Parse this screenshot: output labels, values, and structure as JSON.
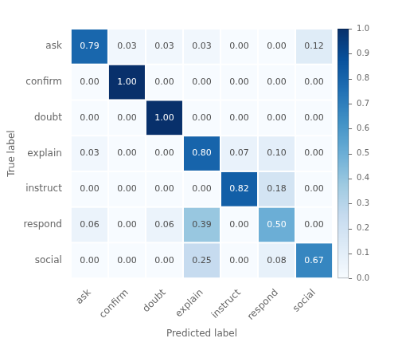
{
  "chart_data": {
    "type": "heatmap",
    "x": [
      "ask",
      "confirm",
      "doubt",
      "explain",
      "instruct",
      "respond",
      "social"
    ],
    "y": [
      "ask",
      "confirm",
      "doubt",
      "explain",
      "instruct",
      "respond",
      "social"
    ],
    "values": [
      [
        0.79,
        0.03,
        0.03,
        0.03,
        0.0,
        0.0,
        0.12
      ],
      [
        0.0,
        1.0,
        0.0,
        0.0,
        0.0,
        0.0,
        0.0
      ],
      [
        0.0,
        0.0,
        1.0,
        0.0,
        0.0,
        0.0,
        0.0
      ],
      [
        0.03,
        0.0,
        0.0,
        0.8,
        0.07,
        0.1,
        0.0
      ],
      [
        0.0,
        0.0,
        0.0,
        0.0,
        0.82,
        0.18,
        0.0
      ],
      [
        0.06,
        0.0,
        0.06,
        0.39,
        0.0,
        0.5,
        0.0
      ],
      [
        0.0,
        0.0,
        0.0,
        0.25,
        0.0,
        0.08,
        0.67
      ]
    ],
    "value_labels": [
      [
        "0.79",
        "0.03",
        "0.03",
        "0.03",
        "0.00",
        "0.00",
        "0.12"
      ],
      [
        "0.00",
        "1.00",
        "0.00",
        "0.00",
        "0.00",
        "0.00",
        "0.00"
      ],
      [
        "0.00",
        "0.00",
        "1.00",
        "0.00",
        "0.00",
        "0.00",
        "0.00"
      ],
      [
        "0.03",
        "0.00",
        "0.00",
        "0.80",
        "0.07",
        "0.10",
        "0.00"
      ],
      [
        "0.00",
        "0.00",
        "0.00",
        "0.00",
        "0.82",
        "0.18",
        "0.00"
      ],
      [
        "0.06",
        "0.00",
        "0.06",
        "0.39",
        "0.00",
        "0.50",
        "0.00"
      ],
      [
        "0.00",
        "0.00",
        "0.00",
        "0.25",
        "0.00",
        "0.08",
        "0.67"
      ]
    ],
    "data_labels": true,
    "xlabel": "Predicted label",
    "ylabel": "True label",
    "color": "Blues",
    "colorbar_lim": [
      0,
      1
    ],
    "colorbar_ticks": [
      {
        "value": 0,
        "label": "0.0"
      },
      0.1,
      0.2,
      0.3,
      0.4,
      0.5,
      0.6,
      0.7,
      0.8,
      0.9,
      {
        "value": 1,
        "label": "1.0"
      }
    ]
  }
}
